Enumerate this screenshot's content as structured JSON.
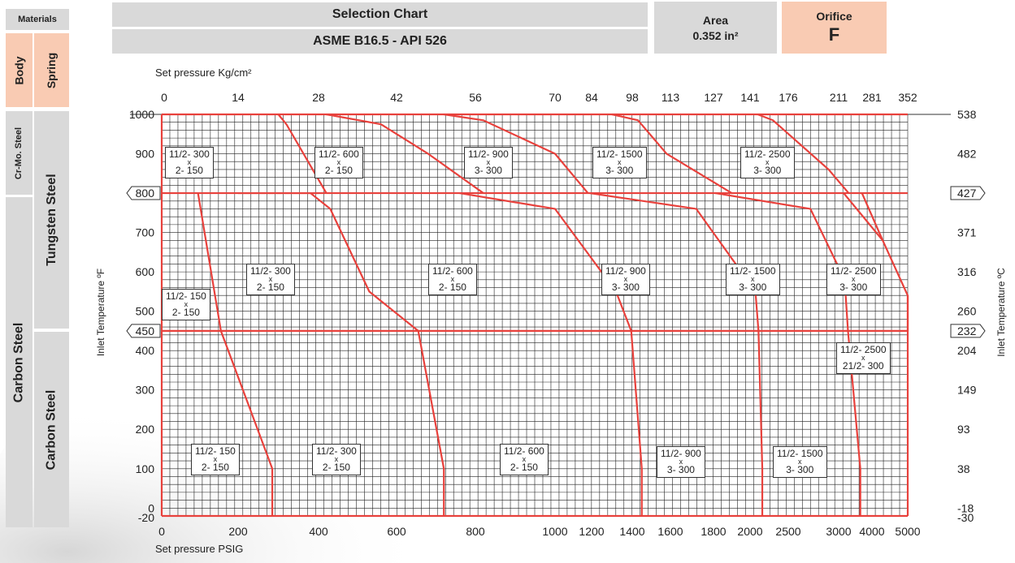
{
  "materials": {
    "heading": "Materials",
    "body": "Body",
    "spring": "Spring",
    "cr_mo_steel": "Cr-Mo. Steel",
    "tungsten_steel": "Tungsten Steel",
    "carbon_steel_body": "Carbon Steel",
    "carbon_steel_spring": "Carbon Steel"
  },
  "header": {
    "title": "Selection Chart",
    "subtitle": "ASME B16.5 - API 526",
    "area_label": "Area",
    "area_value": "0.352 in²",
    "orifice_label": "Orifice",
    "orifice_value": "F"
  },
  "colors": {
    "grid": "#222222",
    "curve": "#e8413c",
    "salmon": "#f9cbb3",
    "grey": "#d9d9d9"
  },
  "chart_data": {
    "type": "line",
    "xlabel_top": "Set pressure Kg/cm²",
    "xlabel_bottom": "Set pressure PSIG",
    "ylabel_left": "Inlet Temperature ºF",
    "ylabel_right": "Inlet Temperature ºC",
    "x_ticks_psig": [
      "0",
      "200",
      "400",
      "600",
      "800",
      "1000",
      "1200",
      "1400",
      "1600",
      "1800",
      "2000",
      "2500",
      "3000",
      "4000",
      "5000"
    ],
    "x_ticks_kgcm2": [
      "0",
      "14",
      "28",
      "42",
      "56",
      "70",
      "84",
      "98",
      "113",
      "127",
      "141",
      "176",
      "211",
      "281",
      "352"
    ],
    "y_ticks_f": [
      "1000",
      "900",
      "800",
      "700",
      "600",
      "500",
      "450",
      "400",
      "300",
      "200",
      "100",
      "0",
      "-20"
    ],
    "y_ticks_c": [
      "538",
      "482",
      "427",
      "371",
      "316",
      "260",
      "232",
      "204",
      "149",
      "93",
      "38",
      "-18",
      "-30"
    ],
    "ylim_f": [
      -20,
      1000
    ],
    "grid": true,
    "boundaries_f": [
      1000,
      800,
      450
    ],
    "series": [
      {
        "group": "carbon_steel_to_450",
        "points": [
          [
            285,
            -20
          ],
          [
            285,
            100
          ],
          [
            155,
            450
          ],
          [
            95,
            800
          ]
        ]
      },
      {
        "group": "carbon_steel_to_450",
        "points": [
          [
            720,
            -20
          ],
          [
            720,
            100
          ],
          [
            655,
            450
          ],
          [
            530,
            550
          ],
          [
            380,
            800
          ]
        ]
      },
      {
        "group": "carbon_steel_to_450",
        "points": [
          [
            1450,
            -20
          ],
          [
            1450,
            100
          ],
          [
            1395,
            450
          ],
          [
            1320,
            550
          ],
          [
            1000,
            760
          ],
          [
            800,
            800
          ]
        ]
      },
      {
        "group": "carbon_steel_to_450",
        "points": [
          [
            2160,
            -20
          ],
          [
            2160,
            100
          ],
          [
            2110,
            450
          ],
          [
            2070,
            550
          ],
          [
            1720,
            760
          ],
          [
            1400,
            800
          ]
        ]
      },
      {
        "group": "carbon_steel_to_450",
        "points": [
          [
            3650,
            -20
          ],
          [
            3650,
            100
          ],
          [
            3340,
            450
          ],
          [
            2850,
            760
          ],
          [
            2000,
            800
          ]
        ]
      },
      {
        "group": "tungsten_steel_to_800",
        "points": [
          [
            1450,
            800
          ],
          [
            1400,
            420
          ],
          [
            2000,
            800
          ]
        ]
      }
    ],
    "boxes": [
      {
        "size": "11/2-",
        "inlet": "300",
        "outlet": "2- 150"
      },
      {
        "size": "11/2-",
        "inlet": "600",
        "outlet": "2- 150"
      },
      {
        "size": "11/2-",
        "inlet": "900",
        "outlet": "3- 300"
      },
      {
        "size": "11/2-",
        "inlet": "1500",
        "outlet": "3- 300"
      },
      {
        "size": "11/2-",
        "inlet": "2500",
        "outlet": "3- 300"
      },
      {
        "size": "11/2-",
        "inlet": "150",
        "outlet": "2- 150"
      },
      {
        "size": "11/2-",
        "inlet": "300",
        "outlet": "2- 150"
      },
      {
        "size": "11/2-",
        "inlet": "600",
        "outlet": "2- 150"
      },
      {
        "size": "11/2-",
        "inlet": "900",
        "outlet": "3- 300"
      },
      {
        "size": "11/2-",
        "inlet": "1500",
        "outlet": "3- 300"
      },
      {
        "size": "11/2-",
        "inlet": "2500",
        "outlet": "3- 300"
      },
      {
        "size": "11/2-",
        "inlet": "2500",
        "outlet": "21/2- 300"
      },
      {
        "size": "11/2-",
        "inlet": "150",
        "outlet": "2- 150"
      },
      {
        "size": "11/2-",
        "inlet": "300",
        "outlet": "2- 150"
      },
      {
        "size": "11/2-",
        "inlet": "600",
        "outlet": "2- 150"
      },
      {
        "size": "11/2-",
        "inlet": "900",
        "outlet": "3- 300"
      },
      {
        "size": "11/2-",
        "inlet": "1500",
        "outlet": "3- 300"
      }
    ],
    "x_mark": "x"
  }
}
